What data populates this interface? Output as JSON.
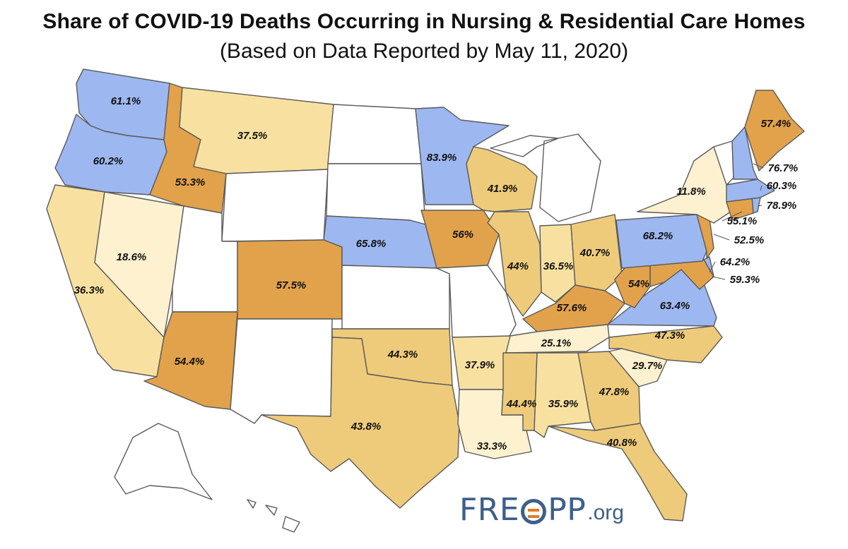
{
  "title": "Share of COVID-19 Deaths Occurring in Nursing & Residential Care Homes",
  "subtitle": "(Based on Data Reported by May 11, 2020)",
  "logo": {
    "main": "FRE",
    "mark": "O",
    "main2": "PP",
    "suffix": ".org"
  },
  "colors": {
    "blue": "#9db7f0",
    "dark_orange": "#e2a24b",
    "medium_tan": "#eecb7a",
    "light_tan": "#f8e1a0",
    "pale": "#fdf1cf",
    "no_data": "#ffffff",
    "logo_blue": "#3d5f8a",
    "logo_orange": "#e07b2a"
  },
  "states": [
    {
      "id": "WA",
      "label": "61.1%",
      "value": 61.1,
      "color": "blue"
    },
    {
      "id": "OR",
      "label": "60.2%",
      "value": 60.2,
      "color": "blue"
    },
    {
      "id": "CA",
      "label": "36.3%",
      "value": 36.3,
      "color": "light_tan"
    },
    {
      "id": "NV",
      "label": "18.6%",
      "value": 18.6,
      "color": "pale"
    },
    {
      "id": "ID",
      "label": "53.3%",
      "value": 53.3,
      "color": "dark_orange"
    },
    {
      "id": "MT",
      "label": "37.5%",
      "value": 37.5,
      "color": "light_tan"
    },
    {
      "id": "WY",
      "label": "",
      "value": null,
      "color": "no_data"
    },
    {
      "id": "UT",
      "label": "",
      "value": null,
      "color": "no_data"
    },
    {
      "id": "AZ",
      "label": "54.4%",
      "value": 54.4,
      "color": "dark_orange"
    },
    {
      "id": "CO",
      "label": "57.5%",
      "value": 57.5,
      "color": "dark_orange"
    },
    {
      "id": "NM",
      "label": "",
      "value": null,
      "color": "no_data"
    },
    {
      "id": "ND",
      "label": "",
      "value": null,
      "color": "no_data"
    },
    {
      "id": "SD",
      "label": "",
      "value": null,
      "color": "no_data"
    },
    {
      "id": "NE",
      "label": "65.8%",
      "value": 65.8,
      "color": "blue"
    },
    {
      "id": "KS",
      "label": "",
      "value": null,
      "color": "no_data"
    },
    {
      "id": "OK",
      "label": "44.3%",
      "value": 44.3,
      "color": "medium_tan"
    },
    {
      "id": "TX",
      "label": "43.8%",
      "value": 43.8,
      "color": "medium_tan"
    },
    {
      "id": "MN",
      "label": "83.9%",
      "value": 83.9,
      "color": "blue"
    },
    {
      "id": "IA",
      "label": "56%",
      "value": 56,
      "color": "dark_orange"
    },
    {
      "id": "MO",
      "label": "",
      "value": null,
      "color": "no_data"
    },
    {
      "id": "AR",
      "label": "37.9%",
      "value": 37.9,
      "color": "light_tan"
    },
    {
      "id": "LA",
      "label": "33.3%",
      "value": 33.3,
      "color": "pale"
    },
    {
      "id": "WI",
      "label": "41.9%",
      "value": 41.9,
      "color": "medium_tan"
    },
    {
      "id": "IL",
      "label": "44%",
      "value": 44,
      "color": "medium_tan"
    },
    {
      "id": "MI",
      "label": "",
      "value": null,
      "color": "no_data"
    },
    {
      "id": "IN",
      "label": "36.5%",
      "value": 36.5,
      "color": "light_tan"
    },
    {
      "id": "OH",
      "label": "40.7%",
      "value": 40.7,
      "color": "medium_tan"
    },
    {
      "id": "KY",
      "label": "57.6%",
      "value": 57.6,
      "color": "dark_orange"
    },
    {
      "id": "TN",
      "label": "25.1%",
      "value": 25.1,
      "color": "pale"
    },
    {
      "id": "MS",
      "label": "44.4%",
      "value": 44.4,
      "color": "medium_tan"
    },
    {
      "id": "AL",
      "label": "35.9%",
      "value": 35.9,
      "color": "light_tan"
    },
    {
      "id": "GA",
      "label": "47.8%",
      "value": 47.8,
      "color": "medium_tan"
    },
    {
      "id": "FL",
      "label": "40.8%",
      "value": 40.8,
      "color": "medium_tan"
    },
    {
      "id": "SC",
      "label": "29.7%",
      "value": 29.7,
      "color": "pale"
    },
    {
      "id": "NC",
      "label": "47.3%",
      "value": 47.3,
      "color": "medium_tan"
    },
    {
      "id": "VA",
      "label": "63.4%",
      "value": 63.4,
      "color": "blue"
    },
    {
      "id": "WV",
      "label": "54%",
      "value": 54,
      "color": "dark_orange"
    },
    {
      "id": "MD",
      "label": "64.2%",
      "value": 64.2,
      "color": "dark_orange"
    },
    {
      "id": "DE",
      "label": "59.3%",
      "value": 59.3,
      "color": "blue"
    },
    {
      "id": "PA",
      "label": "68.2%",
      "value": 68.2,
      "color": "blue"
    },
    {
      "id": "NJ",
      "label": "52.5%",
      "value": 52.5,
      "color": "dark_orange"
    },
    {
      "id": "NY",
      "label": "11.8%",
      "value": 11.8,
      "color": "pale"
    },
    {
      "id": "CT",
      "label": "55.1%",
      "value": 55.1,
      "color": "dark_orange"
    },
    {
      "id": "RI",
      "label": "78.9%",
      "value": 78.9,
      "color": "blue"
    },
    {
      "id": "MA",
      "label": "60.3%",
      "value": 60.3,
      "color": "blue"
    },
    {
      "id": "VT",
      "label": "",
      "value": null,
      "color": "no_data"
    },
    {
      "id": "NH",
      "label": "76.7%",
      "value": 76.7,
      "color": "blue"
    },
    {
      "id": "ME",
      "label": "57.4%",
      "value": 57.4,
      "color": "dark_orange"
    },
    {
      "id": "AK",
      "label": "",
      "value": null,
      "color": "no_data"
    },
    {
      "id": "HI",
      "label": "",
      "value": null,
      "color": "no_data"
    }
  ]
}
